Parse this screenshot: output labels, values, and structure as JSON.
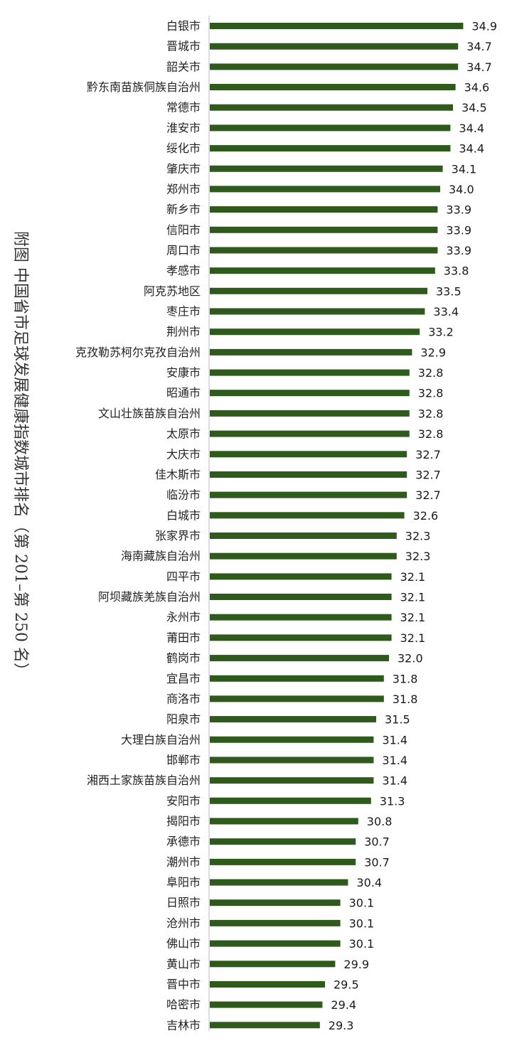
{
  "chart_data": {
    "type": "bar",
    "orientation": "horizontal",
    "title": "附图  中国省市足球发展健康指数城市排名（第 201–第 250 名）",
    "title_position": "left, vertical",
    "categories": [
      "白银市",
      "晋城市",
      "韶关市",
      "黔东南苗族侗族自治州",
      "常德市",
      "淮安市",
      "绥化市",
      "肇庆市",
      "郑州市",
      "新乡市",
      "信阳市",
      "周口市",
      "孝感市",
      "阿克苏地区",
      "枣庄市",
      "荆州市",
      "克孜勒苏柯尔克孜自治州",
      "安康市",
      "昭通市",
      "文山壮族苗族自治州",
      "太原市",
      "大庆市",
      "佳木斯市",
      "临汾市",
      "白城市",
      "张家界市",
      "海南藏族自治州",
      "四平市",
      "阿坝藏族羌族自治州",
      "永州市",
      "莆田市",
      "鹤岗市",
      "宜昌市",
      "商洛市",
      "阳泉市",
      "大理白族自治州",
      "邯郸市",
      "湘西土家族苗族自治州",
      "安阳市",
      "揭阳市",
      "承德市",
      "潮州市",
      "阜阳市",
      "日照市",
      "沧州市",
      "佛山市",
      "黄山市",
      "晋中市",
      "哈密市",
      "吉林市"
    ],
    "values": [
      34.9,
      34.7,
      34.7,
      34.6,
      34.5,
      34.4,
      34.4,
      34.1,
      34.0,
      33.9,
      33.9,
      33.9,
      33.8,
      33.5,
      33.4,
      33.2,
      32.9,
      32.8,
      32.8,
      32.8,
      32.8,
      32.7,
      32.7,
      32.7,
      32.6,
      32.3,
      32.3,
      32.1,
      32.1,
      32.1,
      32.1,
      32.0,
      31.8,
      31.8,
      31.5,
      31.4,
      31.4,
      31.4,
      31.3,
      30.8,
      30.7,
      30.7,
      30.4,
      30.1,
      30.1,
      30.1,
      29.9,
      29.5,
      29.4,
      29.3
    ],
    "value_labels": [
      "34.9",
      "34.7",
      "34.7",
      "34.6",
      "34.5",
      "34.4",
      "34.4",
      "34.1",
      "34.0",
      "33.9",
      "33.9",
      "33.9",
      "33.8",
      "33.5",
      "33.4",
      "33.2",
      "32.9",
      "32.8",
      "32.8",
      "32.8",
      "32.8",
      "32.7",
      "32.7",
      "32.7",
      "32.6",
      "32.3",
      "32.3",
      "32.1",
      "32.1",
      "32.1",
      "32.1",
      "32.0",
      "31.8",
      "31.8",
      "31.5",
      "31.4",
      "31.4",
      "31.4",
      "31.3",
      "30.8",
      "30.7",
      "30.7",
      "30.4",
      "30.1",
      "30.1",
      "30.1",
      "29.9",
      "29.5",
      "29.4",
      "29.3"
    ],
    "xlim": [
      25,
      35
    ],
    "xlabel": "",
    "ylabel": "",
    "grid": false,
    "legend": "none",
    "bar_color": "#2e5a1c",
    "axis_color": "#bdbdbd"
  }
}
